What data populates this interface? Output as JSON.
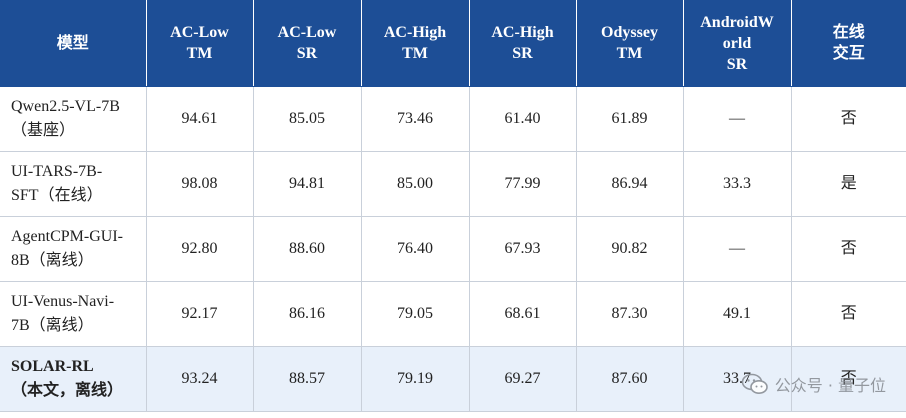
{
  "header": {
    "cols": [
      [
        "模型"
      ],
      [
        "AC-Low",
        "TM"
      ],
      [
        "AC-Low",
        "SR"
      ],
      [
        "AC-High",
        "TM"
      ],
      [
        "AC-High",
        "SR"
      ],
      [
        "Odyssey",
        "TM"
      ],
      [
        "AndroidW",
        "orld",
        "SR"
      ],
      [
        "在线",
        "交互"
      ]
    ]
  },
  "rows": [
    {
      "model": [
        "Qwen2.5-VL-7B",
        "（基座）"
      ],
      "values": [
        "94.61",
        "85.05",
        "73.46",
        "61.40",
        "61.89",
        "—",
        "否"
      ]
    },
    {
      "model": [
        "UI-TARS-7B-",
        "SFT（在线）"
      ],
      "values": [
        "98.08",
        "94.81",
        "85.00",
        "77.99",
        "86.94",
        "33.3",
        "是"
      ]
    },
    {
      "model": [
        "AgentCPM-GUI-",
        "8B（离线）"
      ],
      "values": [
        "92.80",
        "88.60",
        "76.40",
        "67.93",
        "90.82",
        "—",
        "否"
      ]
    },
    {
      "model": [
        "UI-Venus-Navi-",
        "7B（离线）"
      ],
      "values": [
        "92.17",
        "86.16",
        "79.05",
        "68.61",
        "87.30",
        "49.1",
        "否"
      ]
    },
    {
      "model": [
        "SOLAR-RL",
        "（本文，离线）"
      ],
      "values": [
        "93.24",
        "88.57",
        "79.19",
        "69.27",
        "87.60",
        "33.7",
        "否"
      ],
      "highlight": true
    }
  ],
  "watermark": {
    "text": "公众号 · 量子位",
    "icon": "wechat-icon"
  },
  "colors": {
    "header_bg": "#1d4e96",
    "highlight_bg": "#e8f0fa"
  }
}
